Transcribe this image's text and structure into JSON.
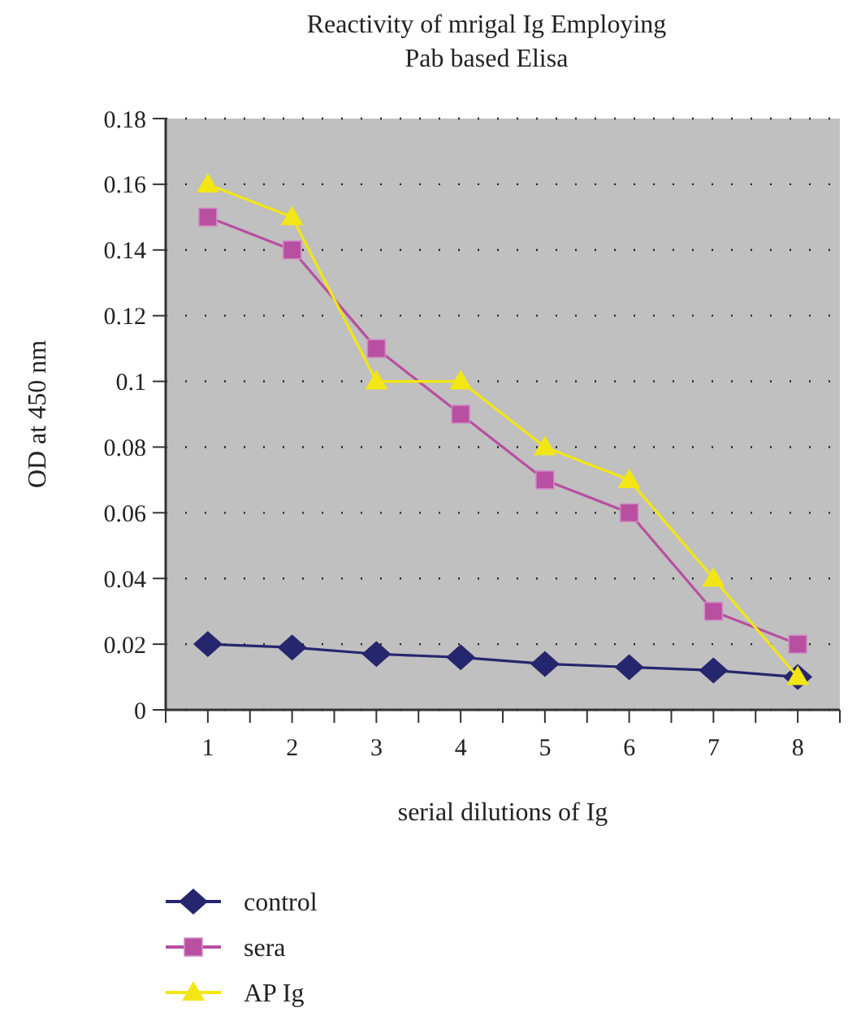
{
  "chart_data": {
    "type": "line",
    "title": "Reactivity of mrigal Ig Employing Pab based Elisa",
    "xlabel": "serial dilutions of Ig",
    "ylabel": "OD at 450 nm",
    "categories": [
      "1",
      "2",
      "3",
      "4",
      "5",
      "6",
      "7",
      "8"
    ],
    "series": [
      {
        "name": "control",
        "color": "#26266e",
        "marker": "diamond",
        "values": [
          0.02,
          0.019,
          0.017,
          0.016,
          0.014,
          0.013,
          0.012,
          0.01
        ]
      },
      {
        "name": "sera",
        "color": "#b84fa0",
        "marker": "square",
        "values": [
          0.15,
          0.14,
          0.11,
          0.09,
          0.07,
          0.06,
          0.03,
          0.02
        ]
      },
      {
        "name": "AP Ig",
        "color": "#f2e614",
        "marker": "triangle",
        "values": [
          0.16,
          0.15,
          0.1,
          0.1,
          0.08,
          0.07,
          0.04,
          0.01
        ]
      }
    ],
    "ylim": [
      0,
      0.18
    ],
    "yticks": [
      0,
      0.02,
      0.04,
      0.06,
      0.08,
      0.1,
      0.12,
      0.14,
      0.16,
      0.18
    ],
    "grid": "y",
    "line_style": "solid",
    "legend": "bottom left"
  }
}
